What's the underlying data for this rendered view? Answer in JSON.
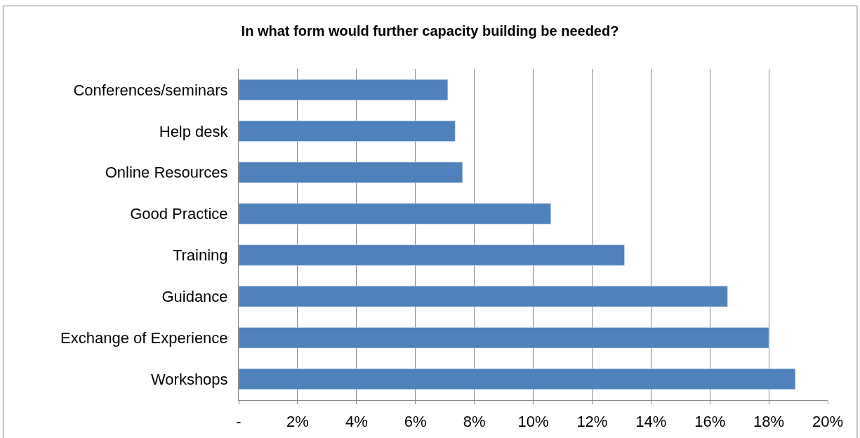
{
  "chart_data": {
    "type": "bar",
    "orientation": "horizontal",
    "title": "In what form would further capacity building be needed?",
    "categories": [
      "Conferences/seminars",
      "Help desk",
      "Online Resources",
      "Good Practice",
      "Training",
      "Guidance",
      "Exchange of Experience",
      "Workshops"
    ],
    "values": [
      7.1,
      7.35,
      7.6,
      10.6,
      13.1,
      16.6,
      18.0,
      18.9
    ],
    "color": "#4f81bd",
    "xlim": [
      0,
      20
    ],
    "xticks": [
      {
        "value": 0,
        "label": "-"
      },
      {
        "value": 2,
        "label": "2%"
      },
      {
        "value": 4,
        "label": "4%"
      },
      {
        "value": 6,
        "label": "6%"
      },
      {
        "value": 8,
        "label": "8%"
      },
      {
        "value": 10,
        "label": "10%"
      },
      {
        "value": 12,
        "label": "12%"
      },
      {
        "value": 14,
        "label": "14%"
      },
      {
        "value": 16,
        "label": "16%"
      },
      {
        "value": 18,
        "label": "18%"
      },
      {
        "value": 20,
        "label": "20%"
      }
    ],
    "grid": "x"
  }
}
